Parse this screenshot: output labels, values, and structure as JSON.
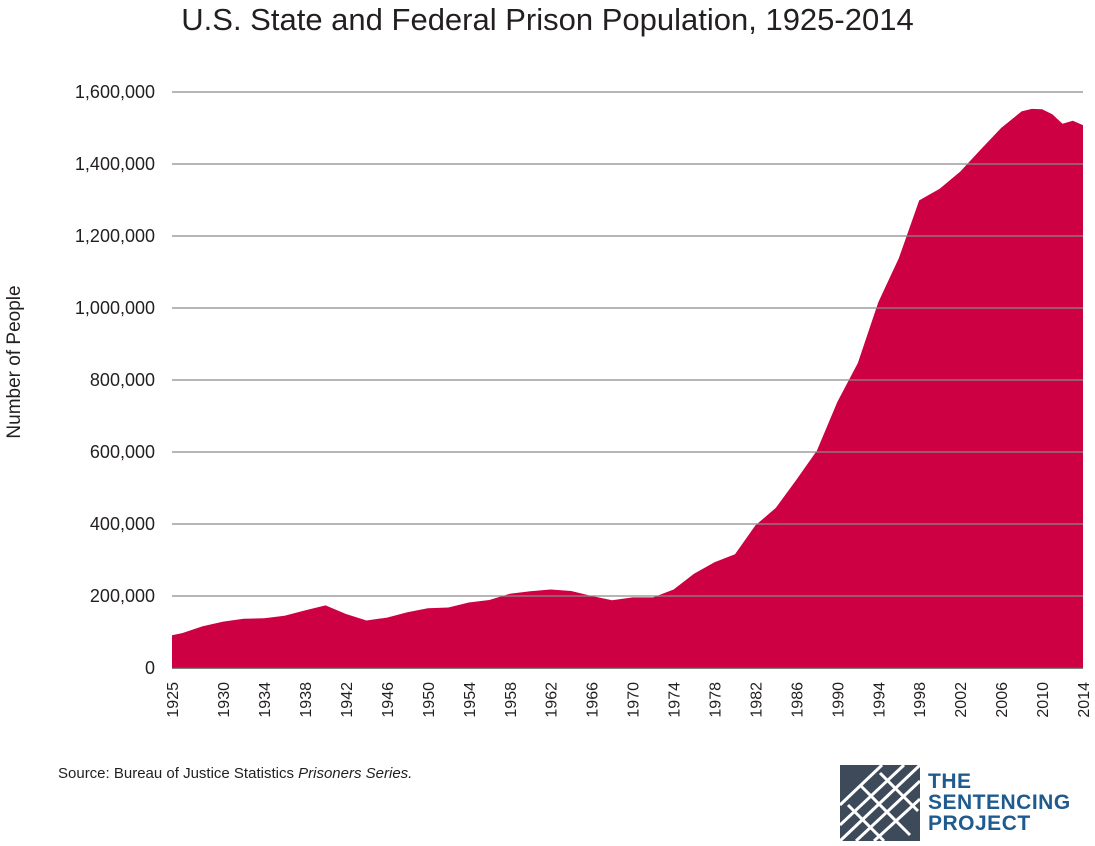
{
  "chart_data": {
    "type": "area",
    "title": "U.S. State and Federal Prison Population, 1925-2014",
    "ylabel": "Number of People",
    "xlabel": "",
    "xlim": [
      1925,
      2014
    ],
    "ylim": [
      0,
      1600000
    ],
    "grid": "horizontal",
    "fill_color": "#cc0042",
    "y_ticks": [
      0,
      200000,
      400000,
      600000,
      800000,
      1000000,
      1200000,
      1400000,
      1600000
    ],
    "y_tick_labels": [
      "0",
      "200,000",
      "400,000",
      "600,000",
      "800,000",
      "1,000,000",
      "1,200,000",
      "1,400,000",
      "1,600,000"
    ],
    "x_ticks": [
      1925,
      1930,
      1934,
      1938,
      1942,
      1946,
      1950,
      1954,
      1958,
      1962,
      1966,
      1970,
      1974,
      1978,
      1982,
      1986,
      1990,
      1994,
      1998,
      2002,
      2006,
      2010,
      2014
    ],
    "x_tick_labels": [
      "1925",
      "1930",
      "1934",
      "1938",
      "1942",
      "1946",
      "1950",
      "1954",
      "1958",
      "1962",
      "1966",
      "1970",
      "1974",
      "1978",
      "1982",
      "1986",
      "1990",
      "1994",
      "1998",
      "2002",
      "2006",
      "2010",
      "2014"
    ],
    "x": [
      1925,
      1926,
      1928,
      1930,
      1932,
      1934,
      1936,
      1938,
      1940,
      1942,
      1944,
      1946,
      1948,
      1950,
      1952,
      1954,
      1956,
      1958,
      1960,
      1962,
      1964,
      1966,
      1968,
      1970,
      1972,
      1974,
      1976,
      1978,
      1980,
      1982,
      1984,
      1986,
      1988,
      1990,
      1992,
      1994,
      1996,
      1998,
      2000,
      2002,
      2004,
      2006,
      2008,
      2009,
      2010,
      2011,
      2012,
      2013,
      2014
    ],
    "values": [
      91000,
      97000,
      116000,
      129000,
      137000,
      138000,
      145000,
      160000,
      174000,
      150000,
      132000,
      140000,
      155000,
      166000,
      168000,
      182000,
      189000,
      206000,
      213000,
      218000,
      214000,
      200000,
      188000,
      196000,
      196000,
      218000,
      262000,
      294000,
      316000,
      396000,
      445000,
      523000,
      604000,
      739000,
      847000,
      1016000,
      1138000,
      1299000,
      1331000,
      1379000,
      1440000,
      1500000,
      1546000,
      1553000,
      1552000,
      1538000,
      1512000,
      1520000,
      1508000
    ]
  },
  "source": {
    "prefix": "Source: Bureau of Justice Statistics ",
    "italic": "Prisoners Series."
  },
  "logo": {
    "line1": "THE",
    "line2": "SENTENCING",
    "line3": "PROJECT",
    "color": "#1f5b8e",
    "mark_color": "#3d4a5a"
  }
}
